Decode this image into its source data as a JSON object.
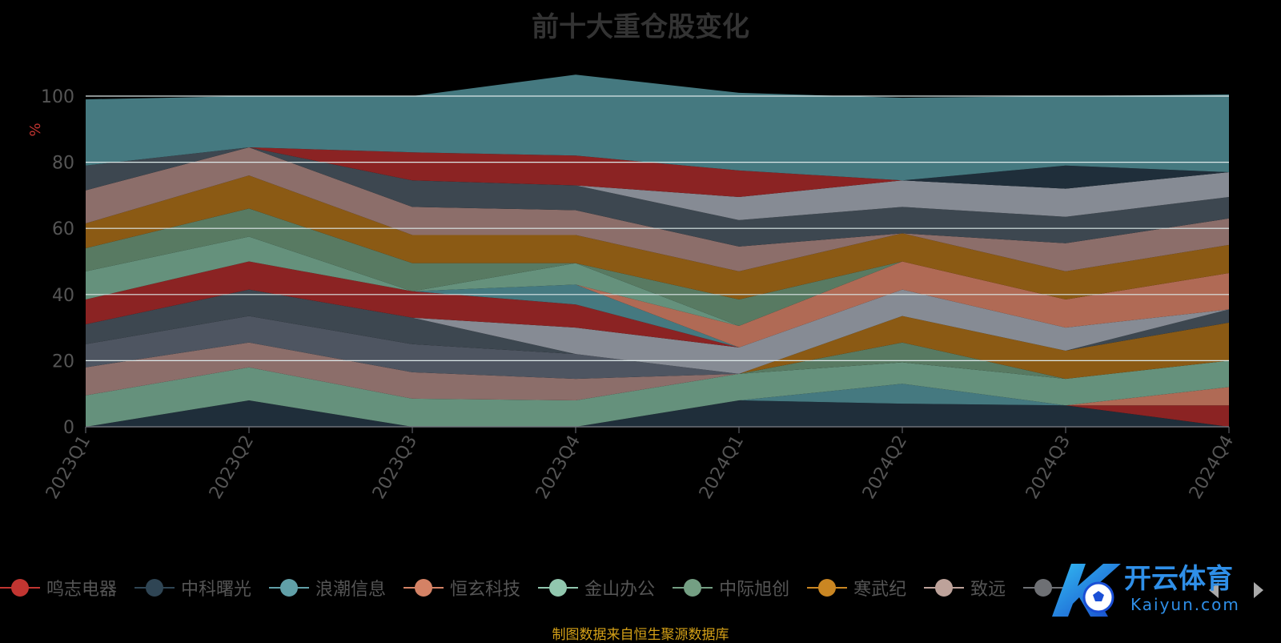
{
  "chart_data": {
    "type": "area",
    "title": "前十大重仓股变化",
    "ylabel": "%",
    "ylim": [
      0,
      100
    ],
    "yticks": [
      0,
      20,
      40,
      60,
      80,
      100
    ],
    "grid": true,
    "legend_position": "bottom",
    "categories": [
      "2023Q1",
      "2023Q2",
      "2023Q3",
      "2023Q4",
      "2024Q1",
      "2024Q2",
      "2024Q3",
      "2024Q4"
    ],
    "layers": [
      {
        "color": "#1f2e3a",
        "values": [
          0,
          8,
          0,
          0,
          8,
          7,
          6.5,
          0
        ]
      },
      {
        "color": "#8b2323",
        "values": [
          0,
          0,
          0,
          0,
          0,
          0,
          0,
          6.5
        ]
      },
      {
        "color": "#457980",
        "values": [
          0,
          0,
          0,
          0,
          0,
          6,
          0,
          0
        ]
      },
      {
        "color": "#b06a55",
        "values": [
          0,
          0,
          0,
          0,
          0,
          0,
          0,
          5.5
        ]
      },
      {
        "color": "#65917c",
        "values": [
          9.5,
          10,
          8.5,
          8,
          8,
          6.5,
          8,
          8
        ]
      },
      {
        "color": "#8c6e6a",
        "values": [
          8.5,
          7.5,
          8,
          6.5,
          0,
          0,
          0,
          0
        ]
      },
      {
        "color": "#4e5561",
        "values": [
          7,
          8,
          8.5,
          7.5,
          0,
          0,
          0,
          0
        ]
      },
      {
        "color": "#587a62",
        "values": [
          0,
          0,
          0,
          0,
          0,
          6,
          0,
          0
        ]
      },
      {
        "color": "#8b5a14",
        "values": [
          0,
          0,
          0,
          0,
          0,
          8,
          8.5,
          11.5
        ]
      },
      {
        "color": "#3d4750",
        "values": [
          6,
          8,
          8,
          0,
          0,
          0,
          0,
          4
        ]
      },
      {
        "color": "#868b94",
        "values": [
          0,
          0,
          0,
          8,
          8,
          8,
          7,
          0
        ]
      },
      {
        "color": "#8b2323",
        "values": [
          7.5,
          8.5,
          8,
          7,
          0,
          0,
          0,
          0
        ]
      },
      {
        "color": "#457980",
        "values": [
          0,
          0,
          0,
          6,
          0,
          0,
          0,
          0
        ]
      },
      {
        "color": "#b06a55",
        "values": [
          0,
          0,
          0,
          0,
          6.5,
          8.5,
          8.5,
          11
        ]
      },
      {
        "color": "#65917c",
        "values": [
          8.5,
          7.5,
          0,
          6.5,
          0,
          0,
          0,
          0
        ]
      },
      {
        "color": "#587a62",
        "values": [
          7,
          8.5,
          8.5,
          0,
          8,
          0,
          0,
          0
        ]
      },
      {
        "color": "#8b5a14",
        "values": [
          7.5,
          10,
          8.5,
          8.5,
          8.5,
          8.5,
          8.5,
          8.5
        ]
      },
      {
        "color": "#8c6e6a",
        "values": [
          10,
          8.5,
          8.5,
          7.5,
          7.5,
          0,
          8.5,
          8
        ]
      },
      {
        "color": "#3d4750",
        "values": [
          7.5,
          0,
          8,
          7.5,
          8,
          8,
          8,
          6.5
        ]
      },
      {
        "color": "#868b94",
        "values": [
          0,
          0,
          0,
          0,
          7,
          8,
          8.5,
          7.5
        ]
      },
      {
        "color": "#8b2323",
        "values": [
          0,
          0,
          8.5,
          9,
          8,
          0,
          0,
          0
        ]
      },
      {
        "color": "#1f2e3a",
        "values": [
          0,
          0,
          0,
          0,
          0,
          0,
          7,
          0
        ]
      },
      {
        "color": "#457980",
        "values": [
          20,
          15.5,
          17,
          24.5,
          23.5,
          25,
          21,
          23.5
        ]
      }
    ],
    "series": [
      {
        "name": "鸣志电器",
        "color": "#c23531"
      },
      {
        "name": "中科曙光",
        "color": "#2f4554"
      },
      {
        "name": "浪潮信息",
        "color": "#61a0a8"
      },
      {
        "name": "恒玄科技",
        "color": "#d48265"
      },
      {
        "name": "金山办公",
        "color": "#91c7ae"
      },
      {
        "name": "中际旭创",
        "color": "#749f83"
      },
      {
        "name": "寒武纪",
        "color": "#ca8622"
      },
      {
        "name": "致远",
        "color": "#bda29a"
      },
      {
        "name": "",
        "color": "#6e7074"
      }
    ]
  },
  "footer": {
    "source_note": "制图数据来自恒生聚源数据库"
  },
  "watermark": {
    "brand_cn": "开云体育",
    "brand_en": "Kaiyun.com"
  }
}
